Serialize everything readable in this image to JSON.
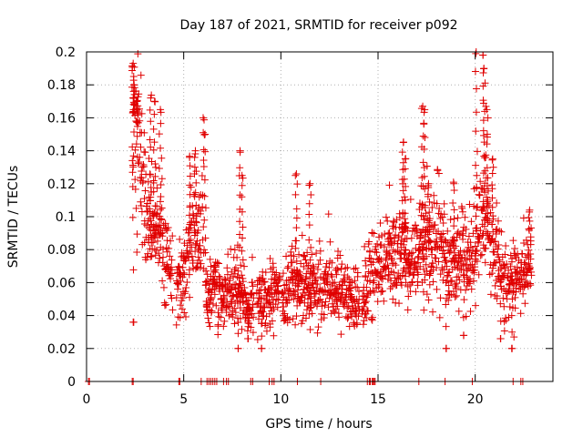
{
  "chart_data": {
    "type": "scatter",
    "title": "Day 187 of 2021, SRMTID for receiver p092",
    "xlabel": "GPS time / hours",
    "ylabel": "SRMTID / TECUs",
    "xlim": [
      0,
      24
    ],
    "ylim": [
      0,
      0.2
    ],
    "xticks": [
      0,
      5,
      10,
      15,
      20
    ],
    "xtick_labels": [
      "0",
      "5",
      "10",
      "15",
      "20"
    ],
    "yticks": [
      0,
      0.02,
      0.04,
      0.06,
      0.08,
      0.1,
      0.12,
      0.14,
      0.16,
      0.18,
      0.2
    ],
    "ytick_labels": [
      "0",
      "0.02",
      "0.04",
      "0.06",
      "0.08",
      "0.1",
      "0.12",
      "0.14",
      "0.16",
      "0.18",
      "0.2"
    ],
    "grid": true,
    "marker": "plus",
    "series": [
      {
        "name": "SRMTID",
        "color": "#e00000",
        "trend": [
          [
            2.35,
            0.165
          ],
          [
            2.6,
            0.155
          ],
          [
            2.9,
            0.12
          ],
          [
            3.1,
            0.1
          ],
          [
            3.4,
            0.09
          ],
          [
            3.7,
            0.095
          ],
          [
            4.0,
            0.08
          ],
          [
            4.3,
            0.07
          ],
          [
            4.6,
            0.06
          ],
          [
            4.9,
            0.063
          ],
          [
            5.2,
            0.072
          ],
          [
            5.5,
            0.095
          ],
          [
            5.8,
            0.085
          ],
          [
            6.1,
            0.06
          ],
          [
            6.4,
            0.055
          ],
          [
            6.7,
            0.057
          ],
          [
            7.0,
            0.05
          ],
          [
            7.3,
            0.052
          ],
          [
            7.6,
            0.06
          ],
          [
            7.9,
            0.055
          ],
          [
            8.2,
            0.045
          ],
          [
            8.5,
            0.045
          ],
          [
            8.8,
            0.055
          ],
          [
            9.1,
            0.048
          ],
          [
            9.4,
            0.05
          ],
          [
            9.7,
            0.06
          ],
          [
            10.0,
            0.052
          ],
          [
            10.3,
            0.05
          ],
          [
            10.6,
            0.065
          ],
          [
            10.9,
            0.058
          ],
          [
            11.2,
            0.06
          ],
          [
            11.5,
            0.055
          ],
          [
            11.8,
            0.06
          ],
          [
            12.1,
            0.055
          ],
          [
            12.4,
            0.06
          ],
          [
            12.7,
            0.055
          ],
          [
            13.0,
            0.055
          ],
          [
            13.3,
            0.05
          ],
          [
            13.6,
            0.052
          ],
          [
            13.9,
            0.048
          ],
          [
            14.2,
            0.05
          ],
          [
            14.5,
            0.06
          ],
          [
            14.8,
            0.07
          ],
          [
            15.1,
            0.065
          ],
          [
            15.4,
            0.07
          ],
          [
            15.7,
            0.075
          ],
          [
            16.0,
            0.08
          ],
          [
            16.3,
            0.085
          ],
          [
            16.6,
            0.075
          ],
          [
            16.9,
            0.075
          ],
          [
            17.2,
            0.085
          ],
          [
            17.5,
            0.08
          ],
          [
            17.8,
            0.08
          ],
          [
            18.1,
            0.09
          ],
          [
            18.4,
            0.075
          ],
          [
            18.7,
            0.07
          ],
          [
            19.0,
            0.068
          ],
          [
            19.3,
            0.072
          ],
          [
            19.6,
            0.07
          ],
          [
            19.9,
            0.075
          ],
          [
            20.2,
            0.09
          ],
          [
            20.5,
            0.1
          ],
          [
            20.8,
            0.09
          ],
          [
            21.1,
            0.075
          ],
          [
            21.4,
            0.065
          ],
          [
            21.7,
            0.06
          ],
          [
            22.0,
            0.06
          ],
          [
            22.3,
            0.065
          ],
          [
            22.6,
            0.07
          ],
          [
            22.9,
            0.068
          ]
        ],
        "spread_min": 0.012,
        "spread_rel": 0.3,
        "gaps": [
          [
            4.45,
            4.62
          ],
          [
            5.9,
            6.1
          ],
          [
            8.6,
            8.75
          ],
          [
            9.95,
            10.05
          ],
          [
            14.05,
            14.18
          ]
        ],
        "peaks": [
          [
            2.4,
            0.193
          ],
          [
            2.45,
            0.18
          ],
          [
            2.6,
            0.17
          ],
          [
            3.3,
            0.172
          ],
          [
            3.5,
            0.17
          ],
          [
            3.8,
            0.165
          ],
          [
            6.0,
            0.16
          ],
          [
            6.1,
            0.15
          ],
          [
            5.6,
            0.14
          ],
          [
            5.3,
            0.136
          ],
          [
            7.9,
            0.14
          ],
          [
            8.0,
            0.125
          ],
          [
            10.8,
            0.126
          ],
          [
            11.5,
            0.12
          ],
          [
            16.3,
            0.145
          ],
          [
            16.4,
            0.135
          ],
          [
            17.3,
            0.167
          ],
          [
            17.4,
            0.165
          ],
          [
            17.6,
            0.12
          ],
          [
            20.05,
            0.2
          ],
          [
            20.4,
            0.198
          ],
          [
            20.45,
            0.19
          ],
          [
            20.6,
            0.165
          ],
          [
            20.9,
            0.135
          ],
          [
            18.9,
            0.12
          ],
          [
            22.8,
            0.104
          ]
        ],
        "lows": [
          [
            2.4,
            0.036
          ],
          [
            7.8,
            0.02
          ],
          [
            8.3,
            0.026
          ],
          [
            9.0,
            0.02
          ],
          [
            18.5,
            0.02
          ],
          [
            21.9,
            0.02
          ],
          [
            21.3,
            0.026
          ],
          [
            19.4,
            0.028
          ]
        ],
        "zero_points": [
          0.1,
          0.15,
          2.35,
          2.4,
          4.75,
          4.8,
          5.9,
          6.2,
          6.3,
          6.4,
          6.5,
          6.6,
          6.7,
          7.05,
          7.2,
          7.3,
          8.45,
          8.55,
          9.4,
          9.55,
          9.65,
          10.85,
          12.05,
          14.45,
          14.55,
          14.6,
          14.7,
          14.75,
          14.8,
          14.85,
          17.1,
          18.45,
          19.85,
          21.95,
          22.35,
          22.45
        ]
      }
    ]
  }
}
